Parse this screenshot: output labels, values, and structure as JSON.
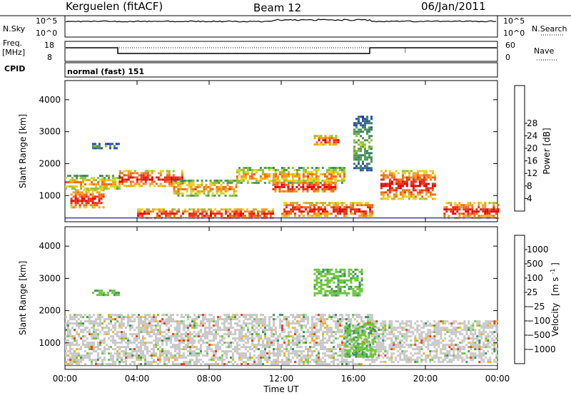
{
  "header": {
    "station": "Kerguelen (fitACF)",
    "beam": "Beam 12",
    "date": "06/Jan/2011"
  },
  "panels": {
    "nsky": {
      "left_label": "N.Sky",
      "right_label": "N.Search",
      "top_tick": "10^5",
      "bottom_tick": "10^0",
      "right_top_tick": "10^5",
      "right_bottom_tick": "10^0"
    },
    "freq": {
      "left_label_1": "Freq.",
      "left_label_2": "[MHz]",
      "right_label": "Nave",
      "left_top_tick": "18",
      "left_bottom_tick": "8",
      "right_top_tick": "60",
      "right_bottom_tick": "0"
    },
    "cpid": {
      "label": "CPID",
      "value": "normal (fast) 151"
    }
  },
  "chart_data": [
    {
      "type": "heatmap",
      "title": "",
      "xlabel": "",
      "ylabel": "Slant Range [km]",
      "xlim": [
        0,
        24
      ],
      "ylim": [
        180,
        4600
      ],
      "y_ticks": [
        "1000",
        "2000",
        "3000",
        "4000"
      ],
      "colorbar": {
        "label": "Power [dB]",
        "ticks": [
          "4",
          "8",
          "12",
          "16",
          "20",
          "24",
          "28"
        ],
        "colors": [
          "#1b1bd6",
          "#2a4fa8",
          "#3e7f6a",
          "#4f9c4f",
          "#8fc23a",
          "#e6d21e",
          "#f0a21a",
          "#f26a18",
          "#ee2d14",
          "#e60000"
        ]
      },
      "regions": [
        {
          "t": [
            0.3,
            2.2
          ],
          "r": [
            600,
            1200
          ],
          "level": "high"
        },
        {
          "t": [
            0.0,
            3.0
          ],
          "r": [
            1200,
            1650
          ],
          "level": "medium"
        },
        {
          "t": [
            3.0,
            6.5
          ],
          "r": [
            1300,
            1800
          ],
          "level": "high"
        },
        {
          "t": [
            6.0,
            9.5
          ],
          "r": [
            1000,
            1500
          ],
          "level": "medium"
        },
        {
          "t": [
            4.0,
            11.5
          ],
          "r": [
            300,
            600
          ],
          "level": "high"
        },
        {
          "t": [
            9.5,
            15.5
          ],
          "r": [
            1400,
            1900
          ],
          "level": "medium"
        },
        {
          "t": [
            11.5,
            15.0
          ],
          "r": [
            1100,
            1500
          ],
          "level": "high"
        },
        {
          "t": [
            12.0,
            17.0
          ],
          "r": [
            350,
            800
          ],
          "level": "high"
        },
        {
          "t": [
            13.8,
            15.2
          ],
          "r": [
            2600,
            2900
          ],
          "level": "high"
        },
        {
          "t": [
            16.0,
            17.0
          ],
          "r": [
            1800,
            3500
          ],
          "level": "low"
        },
        {
          "t": [
            17.5,
            20.5
          ],
          "r": [
            900,
            1800
          ],
          "level": "high"
        },
        {
          "t": [
            21.0,
            24.0
          ],
          "r": [
            300,
            800
          ],
          "level": "high"
        },
        {
          "t": [
            1.5,
            3.0
          ],
          "r": [
            2500,
            2650
          ],
          "level": "low"
        }
      ]
    },
    {
      "type": "heatmap",
      "title": "",
      "xlabel": "Time UT",
      "ylabel": "Slant Range [km]",
      "xlim": [
        0,
        24
      ],
      "ylim": [
        180,
        4600
      ],
      "x_ticks": [
        "00:00",
        "04:00",
        "08:00",
        "12:00",
        "16:00",
        "20:00",
        "00:00"
      ],
      "y_ticks": [
        "1000",
        "2000",
        "3000",
        "4000"
      ],
      "colorbar": {
        "label_main": "Velocity",
        "label_unit": "[m s",
        "label_exp": "-1",
        "label_end": "]",
        "ticks": [
          "1000",
          "500",
          "100",
          "25",
          "−25",
          "−100",
          "−500",
          "−1000"
        ],
        "colors": [
          "#1f3ab3",
          "#2f6fb0",
          "#3f8f5c",
          "#6cc63c",
          "#c8c8c8",
          "#c8c8c8",
          "#f0b020",
          "#f07820",
          "#ee3a1a",
          "#e60000"
        ]
      },
      "regions": [
        {
          "t": [
            0.0,
            17.0
          ],
          "r": [
            350,
            1900
          ],
          "level": "gray"
        },
        {
          "t": [
            17.0,
            24.0
          ],
          "r": [
            400,
            1700
          ],
          "level": "gray"
        },
        {
          "t": [
            13.8,
            16.5
          ],
          "r": [
            2500,
            3300
          ],
          "level": "green"
        },
        {
          "t": [
            15.5,
            17.2
          ],
          "r": [
            600,
            1600
          ],
          "level": "green"
        },
        {
          "t": [
            1.5,
            3.0
          ],
          "r": [
            2500,
            2650
          ],
          "level": "green"
        }
      ]
    }
  ]
}
